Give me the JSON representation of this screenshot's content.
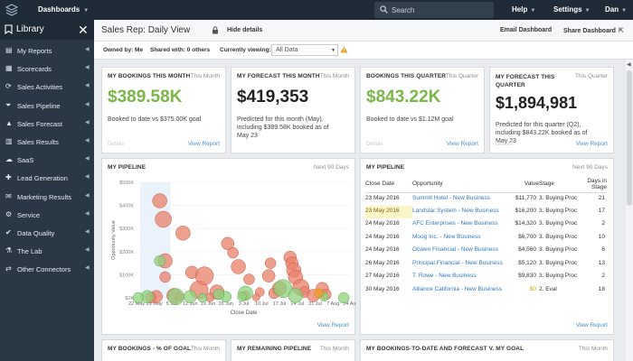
{
  "topbar": {
    "dashboards_label": "Dashboards",
    "search_placeholder": "Search",
    "help_label": "Help",
    "settings_label": "Settings",
    "user_label": "Dan"
  },
  "sidebar": {
    "title": "Library",
    "items": [
      {
        "label": "My Reports",
        "icon": "document-icon"
      },
      {
        "label": "Scorecards",
        "icon": "scorecard-icon"
      },
      {
        "label": "Sales Activities",
        "icon": "activity-icon"
      },
      {
        "label": "Sales Pipeline",
        "icon": "funnel-icon"
      },
      {
        "label": "Sales Forecast",
        "icon": "forecast-icon"
      },
      {
        "label": "Sales Results",
        "icon": "bar-chart-icon"
      },
      {
        "label": "SaaS",
        "icon": "cloud-icon"
      },
      {
        "label": "Lead Generation",
        "icon": "lead-icon"
      },
      {
        "label": "Marketing Results",
        "icon": "marketing-icon"
      },
      {
        "label": "Service",
        "icon": "service-icon"
      },
      {
        "label": "Data Quality",
        "icon": "quality-icon"
      },
      {
        "label": "The Lab",
        "icon": "flask-icon"
      },
      {
        "label": "Other Connectors",
        "icon": "connector-icon"
      }
    ]
  },
  "subheader": {
    "title": "Sales Rep: Daily View",
    "hide_details": "Hide details",
    "email_dashboard": "Email Dashboard",
    "share_dashboard": "Share Dashboard"
  },
  "filters": {
    "owned_by": "Owned by: Me",
    "shared_with": "Shared with: 0 others",
    "currently_viewing_label": "Currently viewing:",
    "currently_viewing_value": "All Data"
  },
  "widgets": {
    "bookings_month": {
      "title": "MY BOOKINGS THIS MONTH",
      "period": "This Month",
      "value": "$389.58K",
      "desc": "Booked to date vs $375.00K goal",
      "details": "Details",
      "view_report": "View Report"
    },
    "forecast_month": {
      "title": "MY FORECAST THIS MONTH",
      "period": "This Month",
      "value": "$419,353",
      "desc_lines": [
        "Predicted for this month (May),",
        "including $389.58K booked as of",
        "May 23"
      ]
    },
    "bookings_quarter": {
      "title": "BOOKINGS THIS QUARTER",
      "period": "This Quarter",
      "value": "$843.22K",
      "desc": "Booked to date vs $1.12M goal",
      "details": "Details",
      "view_report": "View Report"
    },
    "forecast_quarter": {
      "title_lines": [
        "MY FORECAST THIS",
        "QUARTER"
      ],
      "period": "This Quarter",
      "value": "$1,894,981",
      "desc_lines": [
        "Predicted for this quarter (Q2),",
        "including $843.22K booked as of",
        "May 23"
      ],
      "details": "Details",
      "view_report": "View Report"
    },
    "pipeline_chart": {
      "title": "MY PIPELINE",
      "period": "Next 90 Days",
      "view_report": "View Report"
    },
    "pipeline_table": {
      "title": "MY PIPELINE",
      "period": "Next 90 Days",
      "view_report": "View Report",
      "columns": [
        "Close Date",
        "Opportunity",
        "Value",
        "Stage",
        "Days in Stage"
      ],
      "rows": [
        {
          "date": "23 May 2016",
          "opp": "Summit Hotel - New Business",
          "value": "$11,770",
          "stage": "3. Buying Proc",
          "days": "21"
        },
        {
          "date": "23 May 2016",
          "opp": "Landstar System - New Business",
          "value": "$16,200",
          "stage": "3. Buying Proc",
          "days": "17"
        },
        {
          "date": "24 May 2016",
          "opp": "AFC Enterprises - New Business",
          "value": "$14,320",
          "stage": "3. Buying Proc",
          "days": "2"
        },
        {
          "date": "24 May 2016",
          "opp": "Moog Inc. - New Business",
          "value": "$6,700",
          "stage": "3. Buying Proc",
          "days": "10"
        },
        {
          "date": "24 May 2016",
          "opp": "Ocwen Financial - New Business",
          "value": "$4,560",
          "stage": "3. Buying Proc",
          "days": "6"
        },
        {
          "date": "26 May 2016",
          "opp": "Principal Financial - New Business",
          "value": "$5,120",
          "stage": "3. Buying Proc",
          "days": "13"
        },
        {
          "date": "27 May 2016",
          "opp": "T. Rowe - New Business",
          "value": "$9,830",
          "stage": "3. Buying Proc",
          "days": "2"
        },
        {
          "date": "30 May 2016",
          "opp": "Alliance California - New Business",
          "value": "$0",
          "stage": "2. Eval",
          "days": "18"
        }
      ]
    },
    "bookings_goal": {
      "title": "MY BOOKINGS - % OF GOAL",
      "period": "This Month"
    },
    "remaining_pipeline": {
      "title": "MY REMAINING PIPELINE",
      "period": "This Month"
    },
    "bookings_forecast": {
      "title": "MY BOOKINGS-TO-DATE AND FORECAST V. MY GOAL",
      "period": "This Month"
    }
  },
  "chart_data": {
    "type": "scatter",
    "xlabel": "Close Date",
    "ylabel": "Opportunity Value",
    "x_ticks": [
      "22 May",
      "29 May",
      "5 Jun",
      "12 Jun",
      "19 Jun",
      "26 Jun",
      "3 Jul",
      "10 Jul",
      "17 Jul",
      "24 Jul",
      "31 Jul",
      "7 Aug",
      "14 Aug"
    ],
    "y_ticks": [
      "$0K",
      "$100K",
      "$200K",
      "$300K",
      "$400K",
      "$500K"
    ],
    "xlim": [
      0,
      12
    ],
    "ylim": [
      0,
      500
    ],
    "colors": {
      "red": "#e0705a",
      "green": "#7bc46b"
    },
    "series": [
      {
        "color": "red",
        "points": [
          [
            1.3,
            420,
            8
          ],
          [
            1.5,
            340,
            9
          ],
          [
            1.6,
            160,
            8
          ],
          [
            1.1,
            5,
            7
          ],
          [
            1.6,
            90,
            6
          ],
          [
            2.1,
            10,
            8
          ],
          [
            2.6,
            280,
            8
          ],
          [
            3.1,
            110,
            7
          ],
          [
            3.5,
            35,
            10
          ],
          [
            3.8,
            95,
            10
          ],
          [
            4.5,
            25,
            8
          ],
          [
            5.1,
            235,
            7
          ],
          [
            5.4,
            195,
            6
          ],
          [
            5.7,
            135,
            8
          ],
          [
            6.3,
            80,
            6
          ],
          [
            6.1,
            10,
            5
          ],
          [
            6.9,
            25,
            5
          ],
          [
            7.4,
            95,
            7
          ],
          [
            7.5,
            150,
            6
          ],
          [
            7.7,
            20,
            6
          ],
          [
            8.0,
            40,
            8
          ],
          [
            8.6,
            175,
            7
          ],
          [
            8.7,
            150,
            7
          ],
          [
            8.8,
            120,
            8
          ],
          [
            8.9,
            90,
            8
          ],
          [
            9.2,
            45,
            9
          ],
          [
            9.4,
            25,
            6
          ],
          [
            9.9,
            10,
            7
          ],
          [
            10.4,
            40,
            7
          ],
          [
            10.6,
            15,
            6
          ],
          [
            0.8,
            1,
            6
          ],
          [
            2.4,
            3,
            5
          ],
          [
            4.1,
            2,
            5
          ],
          [
            6.7,
            2,
            4
          ]
        ]
      },
      {
        "color": "green",
        "points": [
          [
            0.6,
            5,
            7
          ],
          [
            0.1,
            0,
            6
          ],
          [
            1.3,
            160,
            6
          ],
          [
            2.2,
            5,
            9
          ],
          [
            3.0,
            5,
            7
          ],
          [
            3.7,
            0,
            5
          ],
          [
            5.0,
            5,
            6
          ],
          [
            6.1,
            20,
            8
          ],
          [
            8.2,
            40,
            10
          ],
          [
            8.9,
            10,
            8
          ],
          [
            10.5,
            5,
            5
          ],
          [
            11.6,
            0,
            6
          ],
          [
            4.6,
            15,
            6
          ],
          [
            5.9,
            5,
            5
          ]
        ]
      },
      {
        "color": "orange",
        "points": [
          [
            10.2,
            20,
            5
          ]
        ]
      }
    ]
  }
}
